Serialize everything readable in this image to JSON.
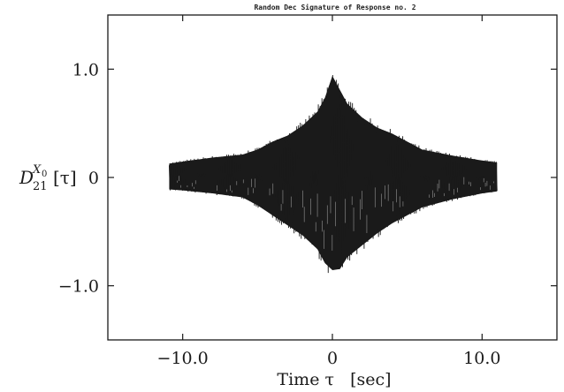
{
  "chart_data": {
    "type": "line",
    "title": "Random Dec Signature of Response no. 2",
    "xlabel": "Time τ   [sec]",
    "ylabel": {
      "main": "D",
      "sub": "21",
      "sup_main": "X",
      "sup_sub": "0",
      "arg": "[τ]"
    },
    "xlim": [
      -15,
      15
    ],
    "ylim": [
      -1.5,
      1.5
    ],
    "x_ticks": [
      -10,
      0,
      10
    ],
    "x_tick_labels": [
      "−10.0",
      "0",
      "10.0"
    ],
    "y_ticks": [
      1,
      0,
      -1
    ],
    "y_tick_labels": [
      "1.0",
      "0",
      "−1.0"
    ],
    "grid": false,
    "series": [
      {
        "style": "dense oscillating trace (envelope shown)",
        "color": "#1a1a1a",
        "x": [
          -10.9,
          -10,
          -8,
          -6,
          -5,
          -4,
          -3,
          -2,
          -1,
          -0.5,
          0,
          0.5,
          1,
          2,
          3,
          4,
          5,
          6,
          8,
          10,
          11
        ],
        "upper": [
          0.14,
          0.16,
          0.2,
          0.23,
          0.28,
          0.36,
          0.42,
          0.52,
          0.66,
          0.8,
          1.02,
          0.88,
          0.74,
          0.6,
          0.5,
          0.44,
          0.36,
          0.28,
          0.22,
          0.17,
          0.15
        ],
        "lower": [
          -0.12,
          -0.13,
          -0.16,
          -0.2,
          -0.28,
          -0.38,
          -0.48,
          -0.58,
          -0.72,
          -0.86,
          -0.93,
          -0.92,
          -0.8,
          -0.68,
          -0.56,
          -0.46,
          -0.38,
          -0.3,
          -0.22,
          -0.16,
          -0.14
        ]
      }
    ]
  }
}
